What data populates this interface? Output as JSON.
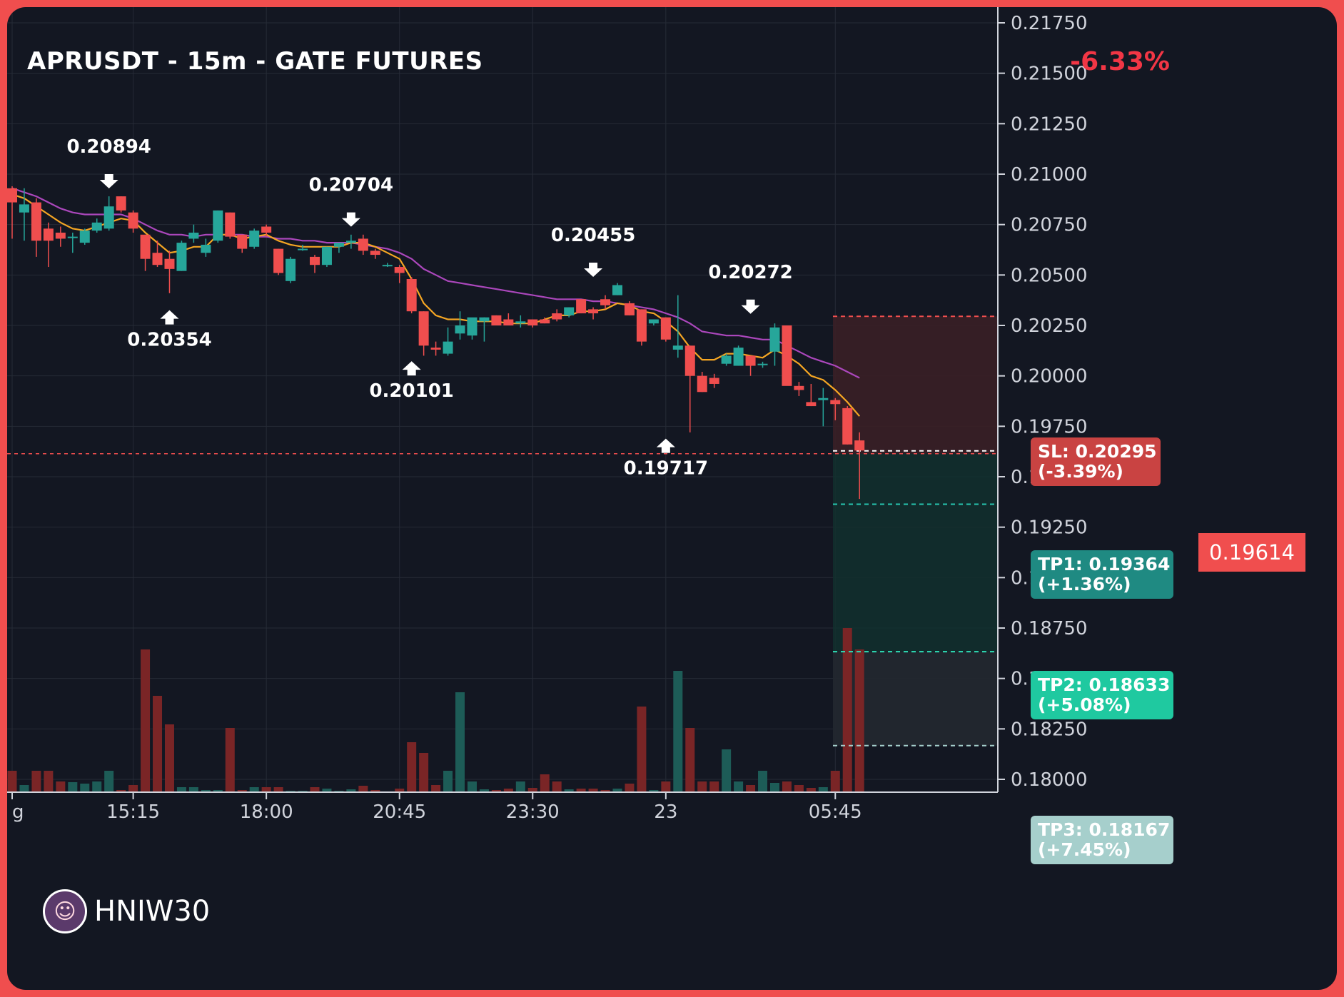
{
  "header": {
    "title": "APRUSDT - 15m - GATE FUTURES",
    "change": "-6.33%"
  },
  "watermark": {
    "name": "HNIW30",
    "avatar_icon": "avatar-icon"
  },
  "colors": {
    "background": "#131722",
    "frame": "#f04e4e",
    "bull": "#26a69a",
    "bear": "#f04e4e",
    "ema_fast": "#f5a623",
    "ema_slow": "#ab47bc",
    "grid": "#262b36",
    "axis_text": "#d1d4dc"
  },
  "levels": {
    "current": {
      "value": 0.19614,
      "label": "0.19614"
    },
    "sl": {
      "value": 0.20295,
      "label": "SL: 0.20295\n(-3.39%)"
    },
    "tp1": {
      "value": 0.19364,
      "label": "TP1: 0.19364\n(+1.36%)"
    },
    "tp2": {
      "value": 0.18633,
      "label": "TP2: 0.18633\n(+5.08%)"
    },
    "tp3": {
      "value": 0.18167,
      "label": "TP3: 0.18167\n(+7.45%)"
    }
  },
  "chart_data": {
    "type": "candlestick",
    "title": "APRUSDT - 15m - GATE FUTURES",
    "y_axis": {
      "position": "right",
      "range": [
        0.1795,
        0.2178
      ],
      "ticks": [
        "0.21750",
        "0.21500",
        "0.21250",
        "0.21000",
        "0.20750",
        "0.20500",
        "0.20250",
        "0.20000",
        "0.19750",
        "0.19500",
        "0.19250",
        "0.19000",
        "0.18750",
        "0.18500",
        "0.18250",
        "0.18000"
      ]
    },
    "x_axis": {
      "ticks": [
        {
          "label": "g",
          "index": 0
        },
        {
          "label": "15:15",
          "index": 10
        },
        {
          "label": "18:00",
          "index": 21
        },
        {
          "label": "20:45",
          "index": 32
        },
        {
          "label": "23:30",
          "index": 43
        },
        {
          "label": "23",
          "index": 54
        },
        {
          "label": "05:45",
          "index": 68
        }
      ]
    },
    "grid": true,
    "candles": [
      {
        "o": 0.2093,
        "h": 0.2094,
        "l": 0.2068,
        "c": 0.2086,
        "v": 3
      },
      {
        "o": 0.2081,
        "h": 0.2093,
        "l": 0.2067,
        "c": 0.2085,
        "v": 1
      },
      {
        "o": 0.2086,
        "h": 0.2088,
        "l": 0.2059,
        "c": 0.2067,
        "v": 3
      },
      {
        "o": 0.2073,
        "h": 0.2076,
        "l": 0.2054,
        "c": 0.2067,
        "v": 3
      },
      {
        "o": 0.2071,
        "h": 0.2074,
        "l": 0.2064,
        "c": 0.2068,
        "v": 1.5
      },
      {
        "o": 0.2069,
        "h": 0.2071,
        "l": 0.2061,
        "c": 0.2069,
        "v": 1.4
      },
      {
        "o": 0.2066,
        "h": 0.2073,
        "l": 0.2065,
        "c": 0.2072,
        "v": 1.2
      },
      {
        "o": 0.2072,
        "h": 0.2078,
        "l": 0.2071,
        "c": 0.2076,
        "v": 1.5
      },
      {
        "o": 0.2073,
        "h": 0.2089,
        "l": 0.2072,
        "c": 0.2084,
        "v": 3
      },
      {
        "o": 0.2089,
        "h": 0.2089,
        "l": 0.2081,
        "c": 0.2082,
        "v": 0.3
      },
      {
        "o": 0.2081,
        "h": 0.2082,
        "l": 0.2071,
        "c": 0.2073,
        "v": 1
      },
      {
        "o": 0.207,
        "h": 0.207,
        "l": 0.2052,
        "c": 0.2058,
        "v": 20
      },
      {
        "o": 0.2061,
        "h": 0.2067,
        "l": 0.2054,
        "c": 0.2055,
        "v": 13.5
      },
      {
        "o": 0.2058,
        "h": 0.2062,
        "l": 0.2041,
        "c": 0.2053,
        "v": 9.5
      },
      {
        "o": 0.2052,
        "h": 0.2067,
        "l": 0.2052,
        "c": 0.2066,
        "v": 0.7
      },
      {
        "o": 0.2068,
        "h": 0.2075,
        "l": 0.2066,
        "c": 0.2071,
        "v": 0.7
      },
      {
        "o": 0.2061,
        "h": 0.2068,
        "l": 0.2059,
        "c": 0.2065,
        "v": 0.3
      },
      {
        "o": 0.2067,
        "h": 0.2082,
        "l": 0.2066,
        "c": 0.2082,
        "v": 0.3
      },
      {
        "o": 0.2081,
        "h": 0.2081,
        "l": 0.2068,
        "c": 0.2069,
        "v": 9
      },
      {
        "o": 0.207,
        "h": 0.207,
        "l": 0.2061,
        "c": 0.2063,
        "v": 0.3
      },
      {
        "o": 0.2064,
        "h": 0.2073,
        "l": 0.2063,
        "c": 0.2072,
        "v": 0.7
      },
      {
        "o": 0.2074,
        "h": 0.2075,
        "l": 0.2069,
        "c": 0.2071,
        "v": 0.7
      },
      {
        "o": 0.2063,
        "h": 0.2063,
        "l": 0.205,
        "c": 0.2051,
        "v": 0.7
      },
      {
        "o": 0.2047,
        "h": 0.2059,
        "l": 0.2046,
        "c": 0.2058,
        "v": 0.2
      },
      {
        "o": 0.2063,
        "h": 0.2065,
        "l": 0.2062,
        "c": 0.2063,
        "v": 0.2
      },
      {
        "o": 0.2059,
        "h": 0.206,
        "l": 0.2051,
        "c": 0.2055,
        "v": 0.7
      },
      {
        "o": 0.2055,
        "h": 0.2064,
        "l": 0.2054,
        "c": 0.2064,
        "v": 0.5
      },
      {
        "o": 0.2064,
        "h": 0.2065,
        "l": 0.2061,
        "c": 0.2066,
        "v": 0.2
      },
      {
        "o": 0.2066,
        "h": 0.207,
        "l": 0.2063,
        "c": 0.2067,
        "v": 0.4
      },
      {
        "o": 0.2068,
        "h": 0.207,
        "l": 0.206,
        "c": 0.2062,
        "v": 0.9
      },
      {
        "o": 0.2062,
        "h": 0.2063,
        "l": 0.2058,
        "c": 0.206,
        "v": 0.3
      },
      {
        "o": 0.2055,
        "h": 0.2056,
        "l": 0.2054,
        "c": 0.2055,
        "v": 0.1
      },
      {
        "o": 0.2054,
        "h": 0.2055,
        "l": 0.2046,
        "c": 0.2051,
        "v": 0.5
      },
      {
        "o": 0.2048,
        "h": 0.2049,
        "l": 0.2031,
        "c": 0.2032,
        "v": 7
      },
      {
        "o": 0.2032,
        "h": 0.2032,
        "l": 0.201,
        "c": 0.2015,
        "v": 5.5
      },
      {
        "o": 0.2014,
        "h": 0.2017,
        "l": 0.201,
        "c": 0.2013,
        "v": 1
      },
      {
        "o": 0.2011,
        "h": 0.2024,
        "l": 0.201,
        "c": 0.2017,
        "v": 3
      },
      {
        "o": 0.2021,
        "h": 0.2032,
        "l": 0.2018,
        "c": 0.2025,
        "v": 14
      },
      {
        "o": 0.202,
        "h": 0.2027,
        "l": 0.2018,
        "c": 0.2029,
        "v": 1.5
      },
      {
        "o": 0.2027,
        "h": 0.2029,
        "l": 0.2017,
        "c": 0.2029,
        "v": 0.4
      },
      {
        "o": 0.203,
        "h": 0.203,
        "l": 0.2026,
        "c": 0.2025,
        "v": 0.3
      },
      {
        "o": 0.2028,
        "h": 0.2031,
        "l": 0.2025,
        "c": 0.2025,
        "v": 0.5
      },
      {
        "o": 0.2026,
        "h": 0.203,
        "l": 0.2024,
        "c": 0.2027,
        "v": 1.5
      },
      {
        "o": 0.2028,
        "h": 0.2028,
        "l": 0.2024,
        "c": 0.2025,
        "v": 0.6
      },
      {
        "o": 0.2028,
        "h": 0.2029,
        "l": 0.2026,
        "c": 0.2026,
        "v": 2.5
      },
      {
        "o": 0.2031,
        "h": 0.2033,
        "l": 0.2027,
        "c": 0.2028,
        "v": 1.5
      },
      {
        "o": 0.203,
        "h": 0.2034,
        "l": 0.2029,
        "c": 0.2034,
        "v": 0.4
      },
      {
        "o": 0.2038,
        "h": 0.2038,
        "l": 0.2031,
        "c": 0.2031,
        "v": 0.5
      },
      {
        "o": 0.2033,
        "h": 0.2034,
        "l": 0.2028,
        "c": 0.2031,
        "v": 0.5
      },
      {
        "o": 0.2038,
        "h": 0.204,
        "l": 0.2033,
        "c": 0.2035,
        "v": 0.3
      },
      {
        "o": 0.204,
        "h": 0.2046,
        "l": 0.204,
        "c": 0.2045,
        "v": 0.5
      },
      {
        "o": 0.2036,
        "h": 0.2037,
        "l": 0.203,
        "c": 0.203,
        "v": 1.2
      },
      {
        "o": 0.2033,
        "h": 0.2033,
        "l": 0.2015,
        "c": 0.2017,
        "v": 12
      },
      {
        "o": 0.2026,
        "h": 0.2028,
        "l": 0.2025,
        "c": 0.2028,
        "v": 0.3
      },
      {
        "o": 0.2029,
        "h": 0.2029,
        "l": 0.2017,
        "c": 0.2018,
        "v": 1.5
      },
      {
        "o": 0.2013,
        "h": 0.204,
        "l": 0.2009,
        "c": 0.2015,
        "v": 17
      },
      {
        "o": 0.2015,
        "h": 0.2015,
        "l": 0.1972,
        "c": 0.2,
        "v": 9
      },
      {
        "o": 0.2,
        "h": 0.2002,
        "l": 0.1992,
        "c": 0.1992,
        "v": 1.5
      },
      {
        "o": 0.1999,
        "h": 0.2001,
        "l": 0.1994,
        "c": 0.1996,
        "v": 1.5
      },
      {
        "o": 0.2006,
        "h": 0.2011,
        "l": 0.2005,
        "c": 0.201,
        "v": 6
      },
      {
        "o": 0.2005,
        "h": 0.2015,
        "l": 0.2005,
        "c": 0.2014,
        "v": 1.5
      },
      {
        "o": 0.201,
        "h": 0.201,
        "l": 0.2,
        "c": 0.2005,
        "v": 1
      },
      {
        "o": 0.2006,
        "h": 0.2007,
        "l": 0.2004,
        "c": 0.2006,
        "v": 3
      },
      {
        "o": 0.2012,
        "h": 0.2026,
        "l": 0.2005,
        "c": 0.2024,
        "v": 1.3
      },
      {
        "o": 0.2025,
        "h": 0.2025,
        "l": 0.1996,
        "c": 0.1995,
        "v": 1.5
      },
      {
        "o": 0.1995,
        "h": 0.1997,
        "l": 0.199,
        "c": 0.1993,
        "v": 1
      },
      {
        "o": 0.1987,
        "h": 0.1996,
        "l": 0.1985,
        "c": 0.1985,
        "v": 0.6
      },
      {
        "o": 0.1988,
        "h": 0.1994,
        "l": 0.1975,
        "c": 0.1989,
        "v": 0.7
      },
      {
        "o": 0.1988,
        "h": 0.1989,
        "l": 0.1978,
        "c": 0.1986,
        "v": 3
      },
      {
        "o": 0.1984,
        "h": 0.1985,
        "l": 0.1966,
        "c": 0.1966,
        "v": 23
      },
      {
        "o": 0.1968,
        "h": 0.1972,
        "l": 0.1939,
        "c": 0.1963,
        "v": 20
      }
    ],
    "ema_fast": [
      0.209,
      0.2088,
      0.2084,
      0.208,
      0.2076,
      0.2073,
      0.2072,
      0.2074,
      0.2076,
      0.2078,
      0.2077,
      0.2071,
      0.2066,
      0.2061,
      0.2062,
      0.2064,
      0.2064,
      0.207,
      0.207,
      0.2068,
      0.2069,
      0.207,
      0.2067,
      0.2065,
      0.2064,
      0.2064,
      0.2064,
      0.2064,
      0.2066,
      0.2066,
      0.2064,
      0.2061,
      0.2058,
      0.2048,
      0.2036,
      0.203,
      0.2028,
      0.2028,
      0.2027,
      0.2027,
      0.2027,
      0.2026,
      0.2026,
      0.2026,
      0.2028,
      0.203,
      0.203,
      0.2032,
      0.2032,
      0.2033,
      0.2036,
      0.2035,
      0.2032,
      0.2031,
      0.2027,
      0.2022,
      0.2014,
      0.2008,
      0.2008,
      0.2011,
      0.2011,
      0.201,
      0.2009,
      0.2013,
      0.201,
      0.2006,
      0.2,
      0.1998,
      0.1993,
      0.1987,
      0.198
    ],
    "ema_slow": [
      0.2093,
      0.2091,
      0.2089,
      0.2086,
      0.2083,
      0.2081,
      0.208,
      0.208,
      0.208,
      0.208,
      0.2078,
      0.2075,
      0.2072,
      0.207,
      0.207,
      0.2069,
      0.207,
      0.207,
      0.207,
      0.207,
      0.2069,
      0.2069,
      0.2068,
      0.2068,
      0.2067,
      0.2067,
      0.2066,
      0.2066,
      0.2066,
      0.2065,
      0.2064,
      0.2063,
      0.2061,
      0.2058,
      0.2053,
      0.205,
      0.2047,
      0.2046,
      0.2045,
      0.2044,
      0.2043,
      0.2042,
      0.2041,
      0.204,
      0.2039,
      0.2038,
      0.2038,
      0.2038,
      0.2037,
      0.2037,
      0.2036,
      0.2035,
      0.2034,
      0.2033,
      0.2031,
      0.2029,
      0.2026,
      0.2022,
      0.2021,
      0.202,
      0.202,
      0.2019,
      0.2018,
      0.2018,
      0.2015,
      0.2012,
      0.2009,
      0.2007,
      0.2005,
      0.2002,
      0.1999
    ],
    "annotations": [
      {
        "index": 8,
        "value": 0.20894,
        "label": "0.20894",
        "kind": "high"
      },
      {
        "index": 13,
        "value": 0.20354,
        "label": "0.20354",
        "kind": "low"
      },
      {
        "index": 28,
        "value": 0.20704,
        "label": "0.20704",
        "kind": "high"
      },
      {
        "index": 33,
        "value": 0.20101,
        "label": "0.20101",
        "kind": "low"
      },
      {
        "index": 48,
        "value": 0.20455,
        "label": "0.20455",
        "kind": "high"
      },
      {
        "index": 54,
        "value": 0.19717,
        "label": "0.19717",
        "kind": "low"
      },
      {
        "index": 61,
        "value": 0.20272,
        "label": "0.20272",
        "kind": "high"
      }
    ]
  }
}
